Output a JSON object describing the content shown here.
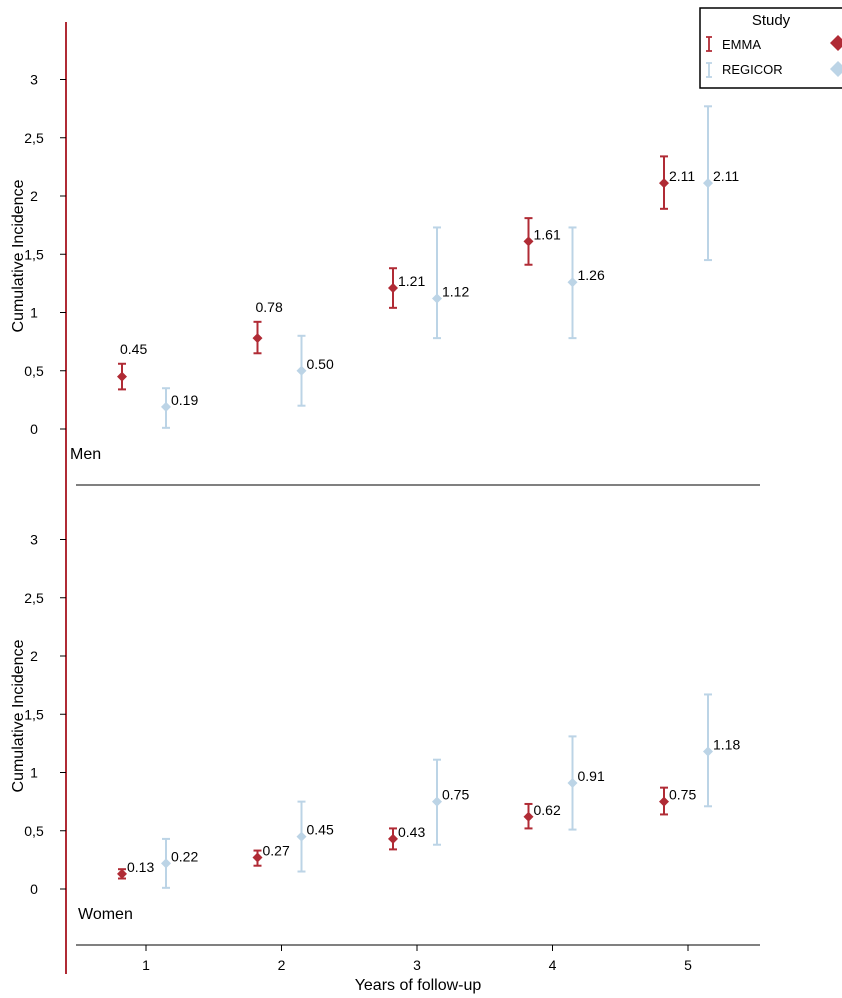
{
  "chart_data": {
    "type": "scatter",
    "xlabel": "Years of follow-up",
    "ylabel": "Cumulative Incidence",
    "x": [
      1,
      2,
      3,
      4,
      5
    ],
    "x_tick_labels": [
      "1",
      "2",
      "3",
      "4",
      "5"
    ],
    "y_tick_labels": [
      "0",
      "0,5",
      "1",
      "1,5",
      "2",
      "2,5",
      "3"
    ],
    "ylim": [
      0,
      3
    ],
    "grid": false,
    "legend": {
      "title": "Study",
      "placement": "top-right",
      "entries": [
        "EMMA",
        "REGICOR"
      ]
    },
    "colors": {
      "EMMA": "#b02b35",
      "REGICOR": "#bcd4e6"
    },
    "panels": [
      {
        "label": "Men",
        "series": [
          {
            "name": "EMMA",
            "values": [
              0.45,
              0.78,
              1.21,
              1.61,
              2.11
            ],
            "labels": [
              "0.45",
              "0.78",
              "1.21",
              "1.61",
              "2.11"
            ],
            "lower": [
              0.34,
              0.65,
              1.04,
              1.41,
              1.89
            ],
            "upper": [
              0.56,
              0.92,
              1.38,
              1.81,
              2.34
            ]
          },
          {
            "name": "REGICOR",
            "values": [
              0.19,
              0.5,
              1.12,
              1.26,
              2.11
            ],
            "labels": [
              "0.19",
              "0.50",
              "1.12",
              "1.26",
              "2.11"
            ],
            "lower": [
              0.01,
              0.2,
              0.78,
              0.78,
              1.45
            ],
            "upper": [
              0.35,
              0.8,
              1.73,
              1.73,
              2.77
            ]
          }
        ]
      },
      {
        "label": "Women",
        "series": [
          {
            "name": "EMMA",
            "values": [
              0.13,
              0.27,
              0.43,
              0.62,
              0.75
            ],
            "labels": [
              "0.13",
              "0.27",
              "0.43",
              "0.62",
              "0.75"
            ],
            "lower": [
              0.09,
              0.2,
              0.34,
              0.52,
              0.64
            ],
            "upper": [
              0.17,
              0.33,
              0.52,
              0.73,
              0.87
            ]
          },
          {
            "name": "REGICOR",
            "values": [
              0.22,
              0.45,
              0.75,
              0.91,
              1.18
            ],
            "labels": [
              "0.22",
              "0.45",
              "0.75",
              "0.91",
              "1.18"
            ],
            "lower": [
              0.01,
              0.15,
              0.38,
              0.51,
              0.71
            ],
            "upper": [
              0.43,
              0.75,
              1.11,
              1.31,
              1.67
            ]
          }
        ]
      }
    ]
  }
}
